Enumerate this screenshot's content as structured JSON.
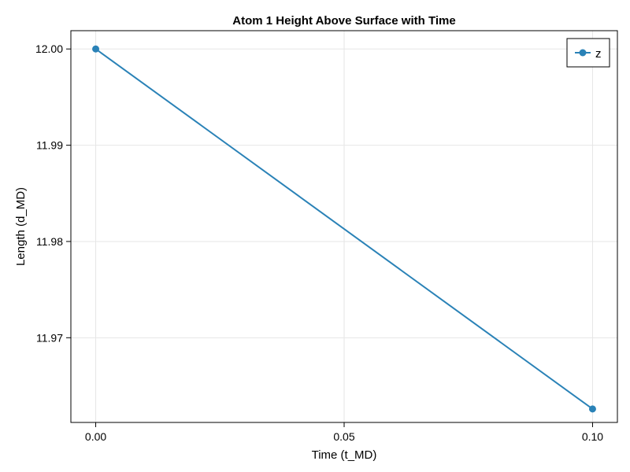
{
  "chart_data": {
    "type": "line",
    "title": "Atom 1 Height Above Surface with Time",
    "xlabel": "Time (t_MD)",
    "ylabel": "Length (d_MD)",
    "xlim": [
      -0.005,
      0.105
    ],
    "ylim": [
      11.9612,
      12.0019
    ],
    "x_ticks": [
      0.0,
      0.05,
      0.1
    ],
    "x_tick_labels": [
      "0.00",
      "0.05",
      "0.10"
    ],
    "y_ticks": [
      11.97,
      11.98,
      11.99,
      12.0
    ],
    "y_tick_labels": [
      "11.97",
      "11.98",
      "11.99",
      "12.00"
    ],
    "grid": true,
    "legend_position": "top-right",
    "series": [
      {
        "name": "z",
        "color": "#2a82b7",
        "markers": true,
        "x": [
          0.0,
          0.1
        ],
        "y": [
          12.0,
          11.9626
        ]
      }
    ]
  }
}
